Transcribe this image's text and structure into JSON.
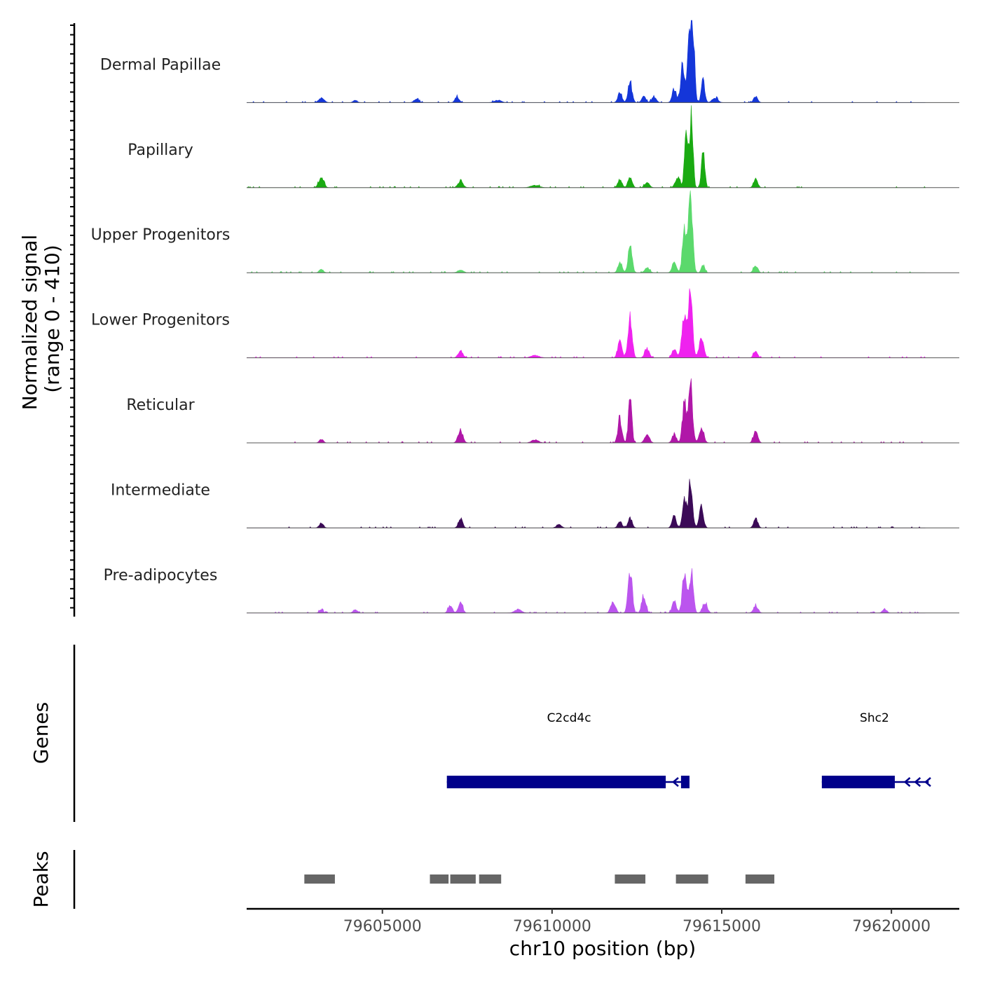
{
  "chart_data": {
    "type": "area",
    "title": "",
    "xlabel": "chr10 position (bp)",
    "ylabel_line1": "Normalized signal",
    "ylabel_line2": "(range 0 - 410)",
    "ylim": [
      0,
      410
    ],
    "xlim": [
      79601000,
      79622000
    ],
    "xticks": [
      79605000,
      79610000,
      79615000,
      79620000
    ],
    "xtick_labels": [
      "79605000",
      "79610000",
      "79615000",
      "79620000"
    ],
    "tracks": [
      {
        "name": "Dermal Papillae",
        "color": "#1436d9",
        "peaks": [
          [
            79603200,
            22,
            80
          ],
          [
            79604200,
            12,
            60
          ],
          [
            79606000,
            18,
            70
          ],
          [
            79607200,
            28,
            60
          ],
          [
            79608400,
            12,
            100
          ],
          [
            79612000,
            55,
            60
          ],
          [
            79612300,
            95,
            60
          ],
          [
            79612700,
            30,
            60
          ],
          [
            79613000,
            25,
            70
          ],
          [
            79613600,
            70,
            60
          ],
          [
            79613850,
            180,
            60
          ],
          [
            79614050,
            310,
            60
          ],
          [
            79614150,
            320,
            50
          ],
          [
            79614450,
            115,
            50
          ],
          [
            79614800,
            25,
            80
          ],
          [
            79616000,
            30,
            60
          ]
        ]
      },
      {
        "name": "Papillary",
        "color": "#1aaa12",
        "peaks": [
          [
            79603200,
            55,
            70
          ],
          [
            79607300,
            30,
            80
          ],
          [
            79609500,
            12,
            120
          ],
          [
            79612000,
            40,
            60
          ],
          [
            79612300,
            55,
            60
          ],
          [
            79612800,
            25,
            70
          ],
          [
            79613700,
            50,
            70
          ],
          [
            79613950,
            250,
            50
          ],
          [
            79614100,
            370,
            50
          ],
          [
            79614450,
            180,
            50
          ],
          [
            79616000,
            45,
            60
          ]
        ]
      },
      {
        "name": "Upper Progenitors",
        "color": "#5bd96c",
        "peaks": [
          [
            79603200,
            18,
            60
          ],
          [
            79607300,
            14,
            80
          ],
          [
            79612000,
            55,
            60
          ],
          [
            79612300,
            130,
            60
          ],
          [
            79612800,
            25,
            70
          ],
          [
            79613600,
            55,
            60
          ],
          [
            79613900,
            210,
            60
          ],
          [
            79614080,
            410,
            60
          ],
          [
            79614450,
            40,
            50
          ],
          [
            79616000,
            38,
            60
          ]
        ]
      },
      {
        "name": "Lower Progenitors",
        "color": "#ef22ef",
        "peaks": [
          [
            79607300,
            35,
            70
          ],
          [
            79609500,
            12,
            120
          ],
          [
            79612000,
            85,
            60
          ],
          [
            79612300,
            190,
            60
          ],
          [
            79612800,
            40,
            70
          ],
          [
            79613600,
            45,
            60
          ],
          [
            79613900,
            220,
            70
          ],
          [
            79614080,
            300,
            60
          ],
          [
            79614400,
            90,
            70
          ],
          [
            79616000,
            32,
            60
          ]
        ]
      },
      {
        "name": "Reticular",
        "color": "#b017a8",
        "peaks": [
          [
            79603200,
            18,
            60
          ],
          [
            79607300,
            65,
            70
          ],
          [
            79609500,
            15,
            100
          ],
          [
            79612000,
            120,
            60
          ],
          [
            79612300,
            230,
            50
          ],
          [
            79612800,
            40,
            70
          ],
          [
            79613600,
            45,
            60
          ],
          [
            79613900,
            200,
            60
          ],
          [
            79614080,
            300,
            60
          ],
          [
            79614400,
            70,
            70
          ],
          [
            79616000,
            70,
            60
          ]
        ]
      },
      {
        "name": "Intermediate",
        "color": "#3b0a57",
        "peaks": [
          [
            79603200,
            25,
            60
          ],
          [
            79607300,
            50,
            60
          ],
          [
            79610200,
            18,
            70
          ],
          [
            79612000,
            35,
            60
          ],
          [
            79612300,
            50,
            60
          ],
          [
            79613600,
            60,
            60
          ],
          [
            79613900,
            140,
            60
          ],
          [
            79614080,
            235,
            60
          ],
          [
            79614400,
            110,
            60
          ],
          [
            79616000,
            50,
            60
          ]
        ]
      },
      {
        "name": "Pre-adipocytes",
        "color": "#bb55ee",
        "peaks": [
          [
            79603200,
            15,
            60
          ],
          [
            79604200,
            18,
            60
          ],
          [
            79607000,
            40,
            60
          ],
          [
            79607300,
            60,
            60
          ],
          [
            79609000,
            18,
            100
          ],
          [
            79611800,
            55,
            70
          ],
          [
            79612300,
            200,
            60
          ],
          [
            79612700,
            90,
            60
          ],
          [
            79613600,
            60,
            60
          ],
          [
            79613900,
            210,
            60
          ],
          [
            79614100,
            200,
            60
          ],
          [
            79614500,
            50,
            70
          ],
          [
            79616000,
            35,
            70
          ],
          [
            79619800,
            22,
            60
          ]
        ]
      }
    ],
    "genes": [
      {
        "name": "C2cd4c",
        "color": "#00008b",
        "label_pos": 79610500,
        "exons": [
          [
            79606900,
            79613350
          ],
          [
            79613800,
            79614050
          ]
        ],
        "line": [
          79606900,
          79614050
        ],
        "strand": "-"
      },
      {
        "name": "Shc2",
        "color": "#00008b",
        "label_pos": 79619500,
        "exons": [
          [
            79617950,
            79620100
          ]
        ],
        "line": [
          79617950,
          79621100
        ],
        "strand": "-"
      }
    ],
    "peak_regions": [
      [
        79602700,
        79603600
      ],
      [
        79606400,
        79606950
      ],
      [
        79607000,
        79607750
      ],
      [
        79607850,
        79608500
      ],
      [
        79611850,
        79612750
      ],
      [
        79613650,
        79614600
      ],
      [
        79615700,
        79616550
      ]
    ],
    "panel_labels": {
      "genes": "Genes",
      "peaks": "Peaks"
    }
  }
}
